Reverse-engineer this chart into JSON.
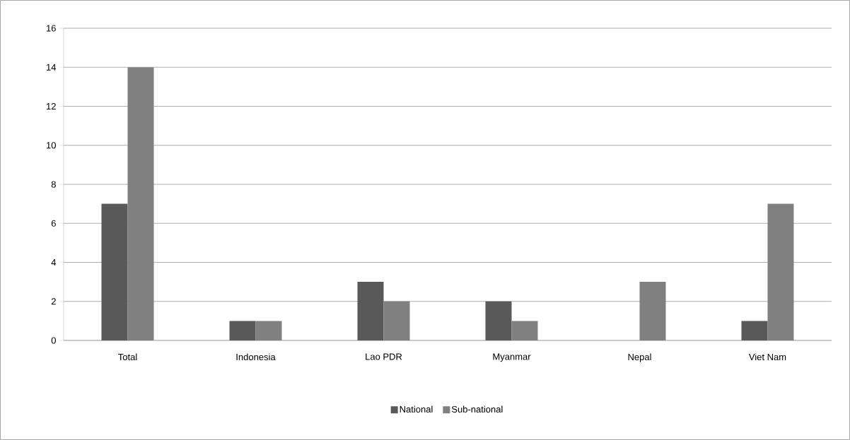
{
  "chart_data": {
    "type": "bar",
    "categories": [
      "Total",
      "Indonesia",
      "Lao PDR",
      "Myanmar",
      "Nepal",
      "Viet Nam"
    ],
    "series": [
      {
        "name": "National",
        "color": "#595959",
        "values": [
          7,
          1,
          3,
          2,
          0,
          1
        ]
      },
      {
        "name": "Sub-national",
        "color": "#808080",
        "values": [
          14,
          1,
          2,
          1,
          3,
          7
        ]
      }
    ],
    "ylim": [
      0,
      16
    ],
    "yticks": [
      0,
      2,
      4,
      6,
      8,
      10,
      12,
      14,
      16
    ],
    "grid": "y",
    "legend": "bottom"
  }
}
